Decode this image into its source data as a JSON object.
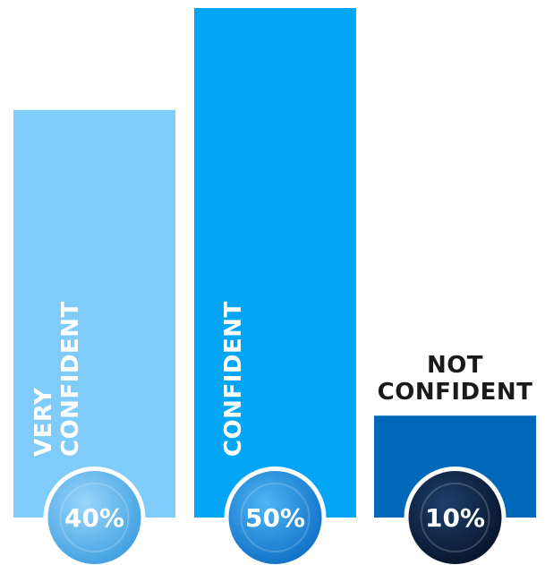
{
  "chart_data": {
    "type": "bar",
    "categories": [
      "VERY CONFIDENT",
      "CONFIDENT",
      "NOT CONFIDENT"
    ],
    "values": [
      40,
      50,
      10
    ],
    "value_labels": [
      "40%",
      "50%",
      "10%"
    ],
    "title": "",
    "xlabel": "",
    "ylabel": "",
    "ylim": [
      0,
      50
    ],
    "grid": false,
    "legend": "none",
    "bar_colors": [
      "#7fccfb",
      "#03a6f5",
      "#0068b8"
    ],
    "badge_colors": [
      "#5ab4ec",
      "#1b8fe0",
      "#0b1f3f"
    ],
    "label_colors": [
      "#ffffff",
      "#ffffff",
      "#1a1a1a"
    ]
  }
}
